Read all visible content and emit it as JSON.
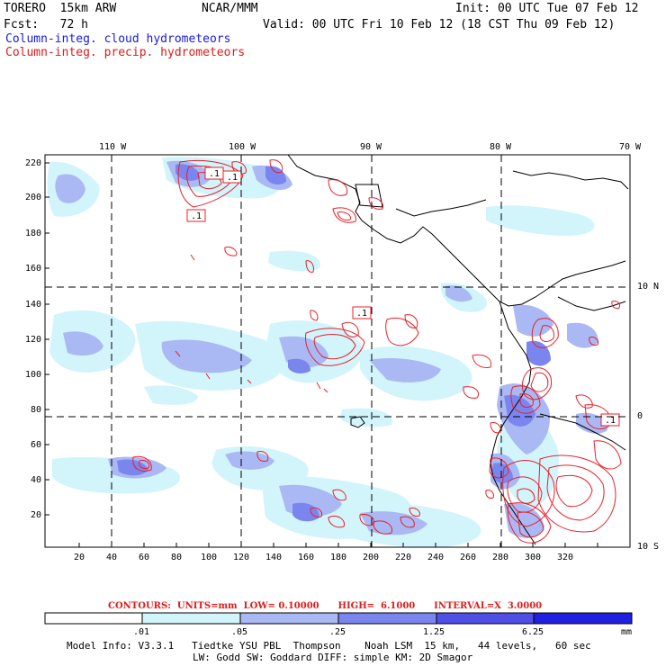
{
  "header": {
    "model": "TORERO  15km ARW",
    "org": "NCAR/MMM",
    "init": "Init: 00 UTC Tue 07 Feb 12",
    "fcst": "Fcst:   72 h",
    "valid": "Valid: 00 UTC Fri 10 Feb 12 (18 CST Thu 09 Feb 12)",
    "field_cloud": "Column-integ. cloud hydrometeors",
    "field_precip": "Column-integ. precip. hydrometeors"
  },
  "colors": {
    "cloud_text": "#1a1ae0",
    "precip_text": "#e01a1a",
    "contour": "#e8202a",
    "fill_levels": [
      "#ffffff",
      "#d2f4fb",
      "#aab8f4",
      "#7a86ee",
      "#5050e8",
      "#2020e0"
    ]
  },
  "map": {
    "lon_labels": [
      "110 W",
      "100 W",
      "90 W",
      "80 W",
      "70 W"
    ],
    "lat_labels": [
      "10 N",
      "0",
      "10 S"
    ],
    "x_ticks": [
      "20",
      "40",
      "60",
      "80",
      "100",
      "120",
      "140",
      "160",
      "180",
      "200",
      "220",
      "240",
      "260",
      "280",
      "300",
      "320"
    ],
    "y_ticks": [
      "220",
      "200",
      "180",
      "160",
      "140",
      "120",
      "100",
      "80",
      "60",
      "40",
      "20"
    ],
    "contour_labels": [
      ".1",
      ".1",
      ".1",
      ".1",
      ".1"
    ]
  },
  "contours": {
    "text": "CONTOURS:  UNITS=mm  LOW= 0.10000      HIGH=  6.1000      INTERVAL=X  3.0000"
  },
  "colorbar": {
    "labels": [
      ".01",
      ".05",
      ".25",
      "1.25",
      "6.25"
    ],
    "units": "mm"
  },
  "footer": {
    "line1": "Model Info: V3.3.1   Tiedtke YSU PBL  Thompson    Noah LSM  15 km,   44 levels,   60 sec",
    "line2": "LW: Godd SW: Goddard DIFF: simple KM: 2D Smagor"
  }
}
